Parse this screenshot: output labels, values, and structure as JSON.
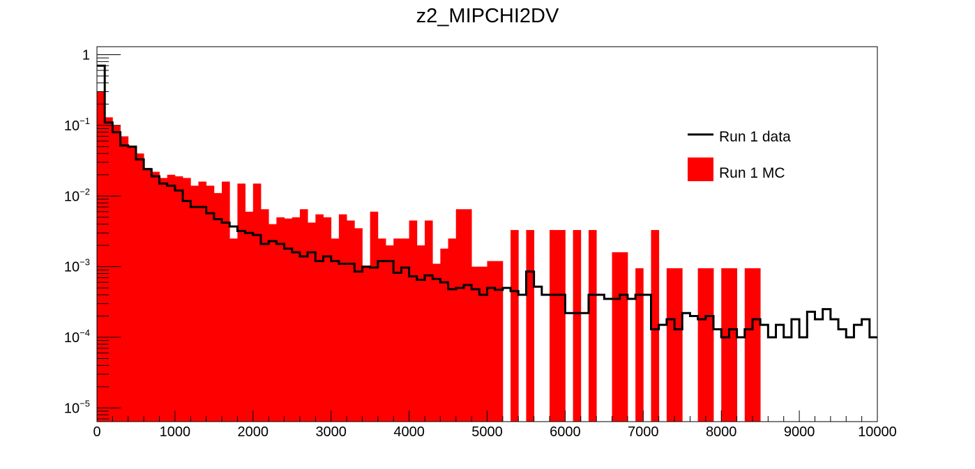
{
  "chart_data": {
    "type": "bar",
    "title": "z2_MIPCHI2DV",
    "xlabel": "",
    "ylabel": "",
    "y_scale": "log",
    "xlim": [
      0,
      10000
    ],
    "ylim": [
      6.4e-06,
      1.3
    ],
    "bin_width": 100,
    "x_ticks": [
      "0",
      "1000",
      "2000",
      "3000",
      "4000",
      "5000",
      "6000",
      "7000",
      "8000",
      "9000",
      "10000"
    ],
    "y_ticks": [
      {
        "base": "1",
        "exp": ""
      },
      {
        "base": "10",
        "exp": "−1"
      },
      {
        "base": "10",
        "exp": "−2"
      },
      {
        "base": "10",
        "exp": "−3"
      },
      {
        "base": "10",
        "exp": "−4"
      },
      {
        "base": "10",
        "exp": "−5"
      }
    ],
    "legend_position": "top-right",
    "series": [
      {
        "name": "Run 1 MC",
        "style": "filled",
        "color": "#ff0000",
        "values": [
          0.3,
          0.13,
          0.1,
          0.07,
          0.05,
          0.04,
          0.025,
          0.022,
          0.018,
          0.02,
          0.019,
          0.018,
          0.014,
          0.016,
          0.014,
          0.011,
          0.016,
          0.0025,
          0.015,
          0.006,
          0.015,
          0.0065,
          0.004,
          0.005,
          0.0048,
          0.005,
          0.0065,
          0.0042,
          0.0055,
          0.005,
          0.0025,
          0.0055,
          0.0045,
          0.0035,
          0.001,
          0.006,
          0.0025,
          0.002,
          0.0025,
          0.0025,
          0.0045,
          0.002,
          0.0045,
          0.0011,
          0.0018,
          0.0025,
          0.0065,
          0.0065,
          0.001,
          0.001,
          0.0012,
          0.0012,
          0.0,
          0.0033,
          0.0,
          0.0033,
          0.0,
          0.0,
          0.0033,
          0.0033,
          0.0,
          0.0033,
          0.0,
          0.0033,
          0.0,
          0.0,
          0.0016,
          0.0016,
          0.0,
          0.00095,
          0.0,
          0.0033,
          0.0,
          0.00095,
          0.00095,
          0.0,
          0.0,
          0.00095,
          0.00095,
          0.0,
          0.00095,
          0.00095,
          0.0,
          0.00095,
          0.00095,
          0.0,
          0.0,
          0.0,
          0.0,
          0.0,
          0.0,
          0.0,
          0.0,
          0.0,
          0.0,
          0.0,
          0.0,
          0.0,
          0.0,
          0.0
        ]
      },
      {
        "name": "Run 1 data",
        "style": "step",
        "color": "#000000",
        "values": [
          0.7,
          0.11,
          0.08,
          0.052,
          0.05,
          0.033,
          0.024,
          0.019,
          0.015,
          0.014,
          0.012,
          0.0085,
          0.007,
          0.007,
          0.0057,
          0.0047,
          0.0042,
          0.0037,
          0.0032,
          0.003,
          0.0028,
          0.0021,
          0.0023,
          0.0021,
          0.0018,
          0.0016,
          0.0014,
          0.0016,
          0.0012,
          0.0014,
          0.0012,
          0.0011,
          0.0011,
          0.00085,
          0.001,
          0.00097,
          0.0012,
          0.0012,
          0.00082,
          0.00097,
          0.00073,
          0.00065,
          0.00075,
          0.00067,
          0.0006,
          0.00048,
          0.0005,
          0.00055,
          0.00048,
          0.0004,
          0.0005,
          0.00047,
          0.0005,
          0.00045,
          0.0004,
          0.00085,
          0.00052,
          0.0004,
          0.0004,
          0.0004,
          0.00022,
          0.00022,
          0.00022,
          0.0004,
          0.0004,
          0.00035,
          0.00035,
          0.0004,
          0.00035,
          0.0004,
          0.0004,
          0.00013,
          0.00015,
          0.00018,
          0.00013,
          0.00022,
          0.0002,
          0.00018,
          0.0002,
          0.00013,
          0.0001,
          0.00013,
          0.0001,
          0.00013,
          0.00018,
          0.00015,
          0.0001,
          0.00015,
          0.0001,
          0.00018,
          0.0001,
          0.00023,
          0.00018,
          0.00025,
          0.00018,
          0.00013,
          0.0001,
          0.00015,
          0.00018,
          0.0001
        ]
      }
    ]
  }
}
